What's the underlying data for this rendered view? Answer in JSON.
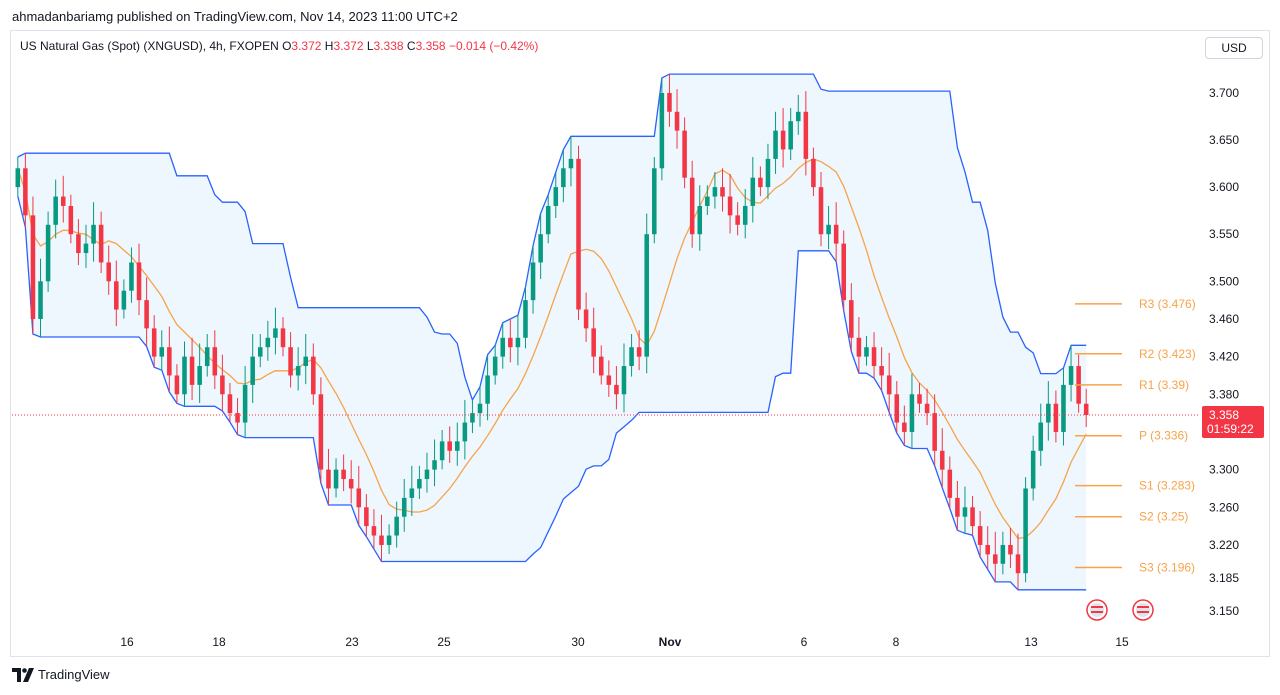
{
  "header": {
    "published": "ahmadanbariamg published on TradingView.com, Nov 14, 2023 11:00 UTC+2"
  },
  "legend": {
    "symbol": "US Natural Gas (Spot) (XNGUSD), 4h, FXOPEN",
    "o_label": "O",
    "o_value": "3.372",
    "h_label": "H",
    "h_value": "3.372",
    "l_label": "L",
    "l_value": "3.338",
    "c_label": "C",
    "c_value": "3.358",
    "change": "−0.014 (−0.42%)"
  },
  "currency_button": "USD",
  "footer": {
    "brand": "TradingView"
  },
  "colors": {
    "up": "#089981",
    "down": "#f23645",
    "donchian": "#2962ff",
    "orange": "#f7a34a",
    "fill": "#e3f2fd"
  },
  "chart_data": {
    "type": "candlestick",
    "symbol": "XNGUSD",
    "interval": "4h",
    "y_axis": {
      "ticks": [
        3.7,
        3.65,
        3.6,
        3.55,
        3.5,
        3.46,
        3.42,
        3.38,
        3.3,
        3.26,
        3.22,
        3.185,
        3.15
      ],
      "tick_labels": [
        "3.700",
        "3.650",
        "3.600",
        "3.550",
        "3.500",
        "3.460",
        "3.420",
        "3.380",
        "3.300",
        "3.260",
        "3.220",
        "3.185",
        "3.150"
      ],
      "range": [
        3.135,
        3.735
      ]
    },
    "x_axis": {
      "labels": [
        {
          "label": "16",
          "bold": false
        },
        {
          "label": "18",
          "bold": false
        },
        {
          "label": "23",
          "bold": false
        },
        {
          "label": "25",
          "bold": false
        },
        {
          "label": "30",
          "bold": false
        },
        {
          "label": "Nov",
          "bold": true
        },
        {
          "label": "6",
          "bold": false
        },
        {
          "label": "8",
          "bold": false
        },
        {
          "label": "13",
          "bold": false
        },
        {
          "label": "15",
          "bold": false
        }
      ]
    },
    "price_label": {
      "price": "3.358",
      "countdown": "01:59:22"
    },
    "pivots": [
      {
        "name": "R3",
        "label": "R3 (3.476)",
        "value": 3.476
      },
      {
        "name": "R2",
        "label": "R2 (3.423)",
        "value": 3.423
      },
      {
        "name": "R1",
        "label": "R1 (3.39)",
        "value": 3.39
      },
      {
        "name": "P",
        "label": "P (3.336)",
        "value": 3.336
      },
      {
        "name": "S1",
        "label": "S1 (3.283)",
        "value": 3.283
      },
      {
        "name": "S2",
        "label": "S2 (3.25)",
        "value": 3.25
      },
      {
        "name": "S3",
        "label": "S3 (3.196)",
        "value": 3.196
      }
    ],
    "closes": [
      3.62,
      3.57,
      3.46,
      3.5,
      3.56,
      3.59,
      3.58,
      3.55,
      3.53,
      3.54,
      3.56,
      3.52,
      3.5,
      3.47,
      3.49,
      3.52,
      3.48,
      3.45,
      3.42,
      3.43,
      3.4,
      3.38,
      3.42,
      3.39,
      3.41,
      3.43,
      3.4,
      3.38,
      3.36,
      3.35,
      3.39,
      3.42,
      3.43,
      3.44,
      3.45,
      3.43,
      3.4,
      3.41,
      3.42,
      3.38,
      3.3,
      3.28,
      3.3,
      3.29,
      3.28,
      3.26,
      3.24,
      3.23,
      3.22,
      3.23,
      3.25,
      3.27,
      3.28,
      3.29,
      3.3,
      3.31,
      3.33,
      3.32,
      3.33,
      3.35,
      3.36,
      3.37,
      3.4,
      3.42,
      3.44,
      3.43,
      3.44,
      3.48,
      3.52,
      3.55,
      3.58,
      3.6,
      3.62,
      3.63,
      3.47,
      3.45,
      3.42,
      3.4,
      3.39,
      3.38,
      3.41,
      3.43,
      3.42,
      3.55,
      3.62,
      3.7,
      3.68,
      3.66,
      3.61,
      3.55,
      3.58,
      3.59,
      3.6,
      3.59,
      3.57,
      3.56,
      3.58,
      3.61,
      3.6,
      3.63,
      3.66,
      3.64,
      3.67,
      3.68,
      3.63,
      3.6,
      3.55,
      3.56,
      3.54,
      3.48,
      3.44,
      3.42,
      3.43,
      3.41,
      3.4,
      3.38,
      3.35,
      3.34,
      3.38,
      3.37,
      3.36,
      3.32,
      3.3,
      3.27,
      3.25,
      3.26,
      3.24,
      3.22,
      3.21,
      3.2,
      3.22,
      3.21,
      3.19,
      3.28,
      3.32,
      3.35,
      3.37,
      3.34,
      3.39,
      3.41,
      3.37,
      3.358
    ],
    "series": [
      {
        "name": "",
        "kind": "donchian_upper"
      },
      {
        "name": "",
        "kind": "donchian_lower"
      },
      {
        "name": "",
        "kind": "middle_orange"
      }
    ]
  }
}
